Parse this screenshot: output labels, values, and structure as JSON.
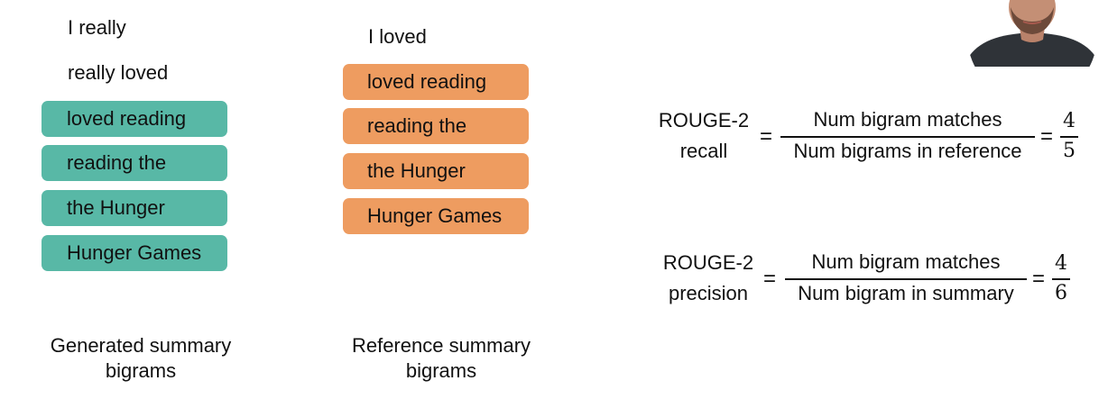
{
  "generated": {
    "bigrams": [
      "I really",
      "really loved",
      "loved reading",
      "reading the",
      "the Hunger",
      "Hunger Games"
    ],
    "caption_line1": "Generated summary",
    "caption_line2": "bigrams"
  },
  "reference": {
    "bigrams": [
      "I loved",
      "loved reading",
      "reading the",
      "the Hunger",
      "Hunger Games"
    ],
    "caption_line1": "Reference summary",
    "caption_line2": "bigrams"
  },
  "recall": {
    "label_line1": "ROUGE-2",
    "label_line2": "recall",
    "numerator": "Num bigram matches",
    "denominator": "Num bigrams in reference",
    "value_num": "4",
    "value_den": "5"
  },
  "precision": {
    "label_line1": "ROUGE-2",
    "label_line2": "precision",
    "numerator": "Num bigram matches",
    "denominator": "Num bigram in summary",
    "value_num": "4",
    "value_den": "6"
  },
  "colors": {
    "matched_generated": "#58b8a6",
    "matched_reference": "#ee9c60"
  }
}
